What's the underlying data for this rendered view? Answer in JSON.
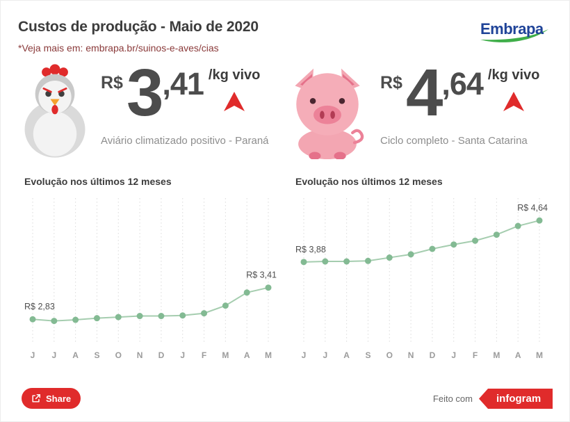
{
  "header": {
    "title": "Custos de produção - Maio de 2020",
    "subtitle": "*Veja mais em: embrapa.br/suinos-e-aves/cias",
    "logo_text": "Embrapa"
  },
  "panels": [
    {
      "animal": "chicken",
      "currency": "R$",
      "price_int": "3",
      "price_dec": ",41",
      "unit": "/kg vivo",
      "trend": "up",
      "caption": "Aviário climatizado positivo - Paraná"
    },
    {
      "animal": "pig",
      "currency": "R$",
      "price_int": "4",
      "price_dec": ",64",
      "unit": "/kg vivo",
      "trend": "up",
      "caption": "Ciclo completo - Santa Catarina"
    }
  ],
  "chart_data": [
    {
      "type": "line",
      "title": "Evolução nos últimos 12 meses",
      "categories": [
        "J",
        "J",
        "A",
        "S",
        "O",
        "N",
        "D",
        "J",
        "F",
        "M",
        "A",
        "M"
      ],
      "values": [
        2.83,
        2.8,
        2.82,
        2.85,
        2.87,
        2.89,
        2.89,
        2.9,
        2.94,
        3.08,
        3.32,
        3.41
      ],
      "point_labels": {
        "first": "R$ 2,83",
        "last": "R$ 3,41"
      },
      "ylim": [
        2.4,
        5.05
      ],
      "grid": "vertical-dotted",
      "legend": "none",
      "line_color": "#a5cdaf",
      "marker_color": "#83ba93"
    },
    {
      "type": "line",
      "title": "Evolução nos últimos 12 meses",
      "categories": [
        "J",
        "J",
        "A",
        "S",
        "O",
        "N",
        "D",
        "J",
        "F",
        "M",
        "A",
        "M"
      ],
      "values": [
        3.88,
        3.89,
        3.89,
        3.9,
        3.96,
        4.02,
        4.12,
        4.2,
        4.27,
        4.38,
        4.54,
        4.64
      ],
      "point_labels": {
        "first": "R$ 3,88",
        "last": "R$ 4,64"
      },
      "ylim": [
        2.4,
        5.05
      ],
      "grid": "vertical-dotted",
      "legend": "none",
      "line_color": "#a5cdaf",
      "marker_color": "#83ba93"
    }
  ],
  "footer": {
    "share_label": "Share",
    "made_with": "Feito com",
    "infogram_label": "infogram"
  },
  "colors": {
    "accent_red": "#e02b2b",
    "number_gray": "#4c4c4c",
    "embrapa_blue": "#1f4398",
    "embrapa_green": "#3fae49"
  }
}
